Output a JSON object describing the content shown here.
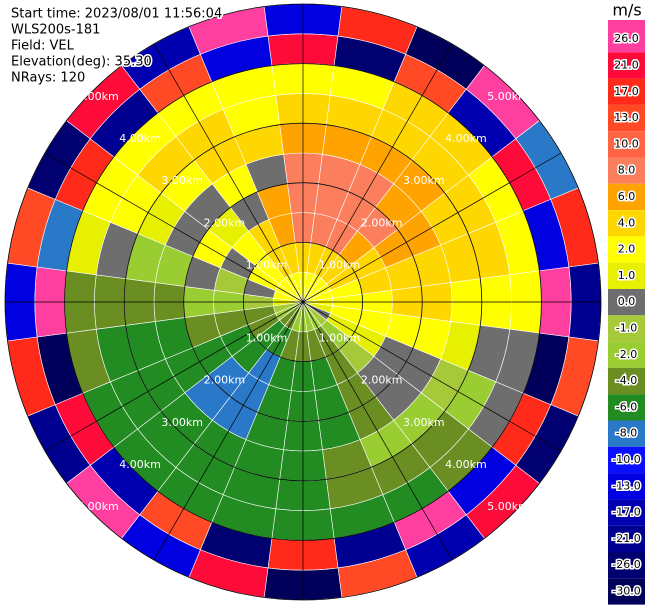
{
  "chart_data": {
    "type": "ppi",
    "info": [
      "Start time: 2023/08/01 11:56:04",
      "WLS200s-181",
      "Field: VEL",
      "Elevation(deg): 35.30",
      "NRays: 120"
    ],
    "colorbar_title": "m/s",
    "colorbar_ticks": [
      {
        "value": 26,
        "label": "26.0"
      },
      {
        "value": 21,
        "label": "21.0"
      },
      {
        "value": 17,
        "label": "17.0"
      },
      {
        "value": 13,
        "label": "13.0"
      },
      {
        "value": 10,
        "label": "10.0"
      },
      {
        "value": 8,
        "label": "8.0"
      },
      {
        "value": 6,
        "label": "6.0"
      },
      {
        "value": 4,
        "label": "4.0"
      },
      {
        "value": 2,
        "label": "2.0"
      },
      {
        "value": 1,
        "label": "1.0"
      },
      {
        "value": 0,
        "label": "0.0"
      },
      {
        "value": -1,
        "label": "-1.0"
      },
      {
        "value": -2,
        "label": "-2.0"
      },
      {
        "value": -4,
        "label": "-4.0"
      },
      {
        "value": -6,
        "label": "-6.0"
      },
      {
        "value": -8,
        "label": "-8.0"
      },
      {
        "value": -10,
        "label": "-10.0"
      },
      {
        "value": -13,
        "label": "-13.0"
      },
      {
        "value": -17,
        "label": "-17.0"
      },
      {
        "value": -21,
        "label": "-21.0"
      },
      {
        "value": -26,
        "label": "-26.0"
      },
      {
        "value": -30,
        "label": "-30.0"
      }
    ],
    "colors": [
      "#ff3fa0",
      "#ff0b3a",
      "#ff2a1a",
      "#ff4a25",
      "#ff6545",
      "#fb7f5c",
      "#ffa300",
      "#ffd700",
      "#ffff00",
      "#e6f000",
      "#6e6e6e",
      "#a6c93a",
      "#9acd32",
      "#6b8e23",
      "#228b22",
      "#2a78c8",
      "#0a10ff",
      "#0000e0",
      "#0000b0",
      "#000090",
      "#000070",
      "#00005a"
    ],
    "rlim": [
      0,
      5
    ],
    "rings": [
      {
        "value": 1,
        "label": "1.00km"
      },
      {
        "value": 2,
        "label": "2.00km"
      },
      {
        "value": 3,
        "label": "3.00km"
      },
      {
        "value": 4,
        "label": "4.00km"
      },
      {
        "value": 5,
        "label": "5.00km"
      }
    ],
    "azimuths": [
      0,
      15,
      30,
      45,
      60,
      75,
      90,
      105,
      120,
      135,
      150,
      165,
      180,
      195,
      210,
      225,
      240,
      255,
      270,
      285,
      300,
      315,
      330,
      345
    ],
    "gates": [
      0,
      0.5,
      1,
      1.5,
      2,
      2.5,
      3,
      3.5,
      4,
      4.5,
      5
    ],
    "values": [
      [
        3,
        5,
        8,
        9,
        8,
        6,
        4,
        3,
        21,
        -13
      ],
      [
        3,
        5,
        8,
        9,
        8,
        6,
        4,
        3,
        -26,
        17
      ],
      [
        3,
        5,
        8,
        9,
        8,
        6,
        5,
        4,
        13,
        -30
      ],
      [
        3,
        4,
        7,
        8,
        7,
        6,
        5,
        4,
        -17,
        26
      ],
      [
        3,
        4,
        5,
        6,
        6,
        5,
        4,
        3,
        21,
        -8
      ],
      [
        2,
        3,
        4,
        5,
        5,
        5,
        4,
        3,
        -13,
        17
      ],
      [
        2,
        3,
        3,
        4,
        4,
        3,
        3,
        2,
        26,
        -21
      ],
      [
        1,
        2,
        3,
        3,
        2,
        1,
        0,
        0,
        -30,
        13
      ],
      [
        0,
        1,
        1,
        0,
        0,
        -1,
        -2,
        0,
        17,
        -26
      ],
      [
        -1,
        -2,
        -1,
        0,
        0,
        -2,
        -3,
        -4,
        -13,
        21
      ],
      [
        -2,
        -3,
        -4,
        -4,
        -3,
        -2,
        -3,
        -5,
        26,
        -17
      ],
      [
        -2,
        -4,
        -5,
        -5,
        -5,
        -4,
        -3,
        -5,
        -21,
        13
      ],
      [
        -2,
        -4,
        -5,
        -6,
        -6,
        -5,
        -5,
        -5,
        17,
        -30
      ],
      [
        -2,
        -4,
        -6,
        -6,
        -6,
        -6,
        -5,
        -5,
        -26,
        21
      ],
      [
        -3,
        -5,
        -7,
        -8,
        -7,
        -6,
        -6,
        -6,
        13,
        -13
      ],
      [
        -3,
        -5,
        -6,
        -8,
        -7,
        -6,
        -6,
        -6,
        -17,
        26
      ],
      [
        -2,
        -4,
        -5,
        -6,
        -6,
        -6,
        -6,
        -5,
        21,
        -21
      ],
      [
        -1,
        -3,
        -4,
        -4,
        -5,
        -5,
        -5,
        -4,
        -30,
        17
      ],
      [
        1,
        -1,
        -2,
        -2,
        -3,
        -3,
        -4,
        -4,
        26,
        -13
      ],
      [
        2,
        0,
        -1,
        0,
        -2,
        -2,
        0,
        1,
        -8,
        13
      ],
      [
        3,
        2,
        0,
        2,
        0,
        1,
        3,
        3,
        17,
        -26
      ],
      [
        3,
        3,
        2,
        1,
        0,
        2,
        4,
        3,
        -21,
        21
      ],
      [
        3,
        4,
        4,
        0,
        3,
        4,
        4,
        3,
        13,
        -17
      ],
      [
        3,
        5,
        6,
        6,
        0,
        4,
        3,
        3,
        -13,
        26
      ]
    ]
  }
}
